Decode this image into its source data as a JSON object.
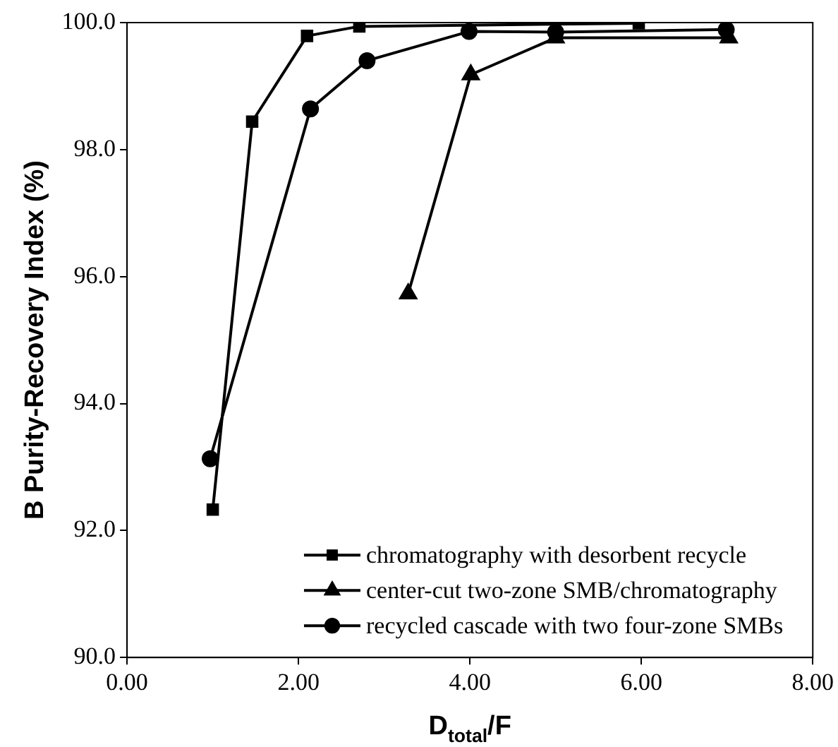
{
  "chart_data": {
    "type": "line",
    "xlabel": "D$_{total}$/F",
    "ylabel": "B Purity-Recovery Index (%)",
    "xlim": [
      0,
      8
    ],
    "xticks": [
      {
        "value": 0,
        "label": "0.00"
      },
      {
        "value": 2,
        "label": "2.00"
      },
      {
        "value": 4,
        "label": "4.00"
      },
      {
        "value": 6,
        "label": "6.00"
      },
      {
        "value": 8,
        "label": "8.00"
      }
    ],
    "ylim": [
      90,
      100
    ],
    "yticks": [
      {
        "value": 90,
        "label": "90.0"
      },
      {
        "value": 92,
        "label": "92.0"
      },
      {
        "value": 94,
        "label": "94.0"
      },
      {
        "value": 96,
        "label": "96.0"
      },
      {
        "value": 98,
        "label": "98.0"
      },
      {
        "value": 100,
        "label": "100.0"
      }
    ],
    "grid": false,
    "legend": "bottom right",
    "line_style": "solid",
    "series": [
      {
        "name": "chromatography with desorbent recycle",
        "color": "#000000",
        "marker": "square",
        "x": [
          1.0,
          1.46,
          2.1,
          2.71,
          5.97
        ],
        "values": [
          92.33,
          98.44,
          99.79,
          99.94,
          99.99
        ]
      },
      {
        "name": "center-cut two-zone SMB/chromatography",
        "color": "#000000",
        "marker": "triangle",
        "x": [
          3.28,
          4.01,
          5.0,
          7.02
        ],
        "values": [
          95.73,
          99.18,
          99.76,
          99.76
        ]
      },
      {
        "name": "recycled cascade with two four-zone SMBs",
        "color": "#000000",
        "marker": "circle",
        "x": [
          0.97,
          2.14,
          2.8,
          3.99,
          5.0,
          6.99
        ],
        "values": [
          93.13,
          98.64,
          99.4,
          99.86,
          99.85,
          99.89
        ]
      }
    ]
  }
}
